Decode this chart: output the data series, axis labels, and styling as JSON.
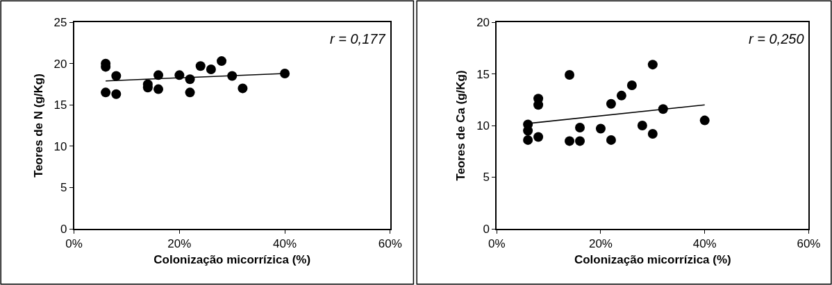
{
  "chart_data": [
    {
      "type": "scatter",
      "xlabel": "Colonização micorrízica (%)",
      "ylabel": "Teores de N (g/Kg)",
      "xlim": [
        0,
        0.6
      ],
      "xticks": [
        {
          "value": 0,
          "label": "0%"
        },
        {
          "value": 0.2,
          "label": "20%"
        },
        {
          "value": 0.4,
          "label": "40%"
        },
        {
          "value": 0.6,
          "label": "60%"
        }
      ],
      "ylim": [
        0,
        25
      ],
      "yticks": [
        0,
        5,
        10,
        15,
        20,
        25
      ],
      "grid": false,
      "annotations": [
        "r = 0,177"
      ],
      "series": [
        {
          "marker": "circle",
          "color": "#000000",
          "x": [
            0.06,
            0.06,
            0.06,
            0.08,
            0.08,
            0.14,
            0.14,
            0.16,
            0.16,
            0.2,
            0.22,
            0.22,
            0.24,
            0.26,
            0.28,
            0.3,
            0.32,
            0.4
          ],
          "values": [
            20.0,
            19.6,
            16.5,
            18.5,
            16.3,
            17.5,
            17.1,
            18.6,
            16.9,
            18.6,
            18.1,
            16.5,
            19.7,
            19.3,
            20.3,
            18.5,
            17.0,
            18.8
          ]
        },
        {
          "type": "line",
          "marker": "none",
          "color": "#000000",
          "x": [
            0.06,
            0.4
          ],
          "values": [
            17.9,
            18.8
          ]
        }
      ]
    },
    {
      "type": "scatter",
      "xlabel": "Colonização micorrízica (%)",
      "ylabel": "Teores de Ca (g/Kg)",
      "xlim": [
        0,
        0.6
      ],
      "xticks": [
        {
          "value": 0,
          "label": "0%"
        },
        {
          "value": 0.2,
          "label": "20%"
        },
        {
          "value": 0.4,
          "label": "40%"
        },
        {
          "value": 0.6,
          "label": "60%"
        }
      ],
      "ylim": [
        0,
        20
      ],
      "yticks": [
        0,
        5,
        10,
        15,
        20
      ],
      "grid": false,
      "annotations": [
        "r = 0,250"
      ],
      "series": [
        {
          "marker": "circle",
          "color": "#000000",
          "x": [
            0.06,
            0.06,
            0.06,
            0.08,
            0.08,
            0.08,
            0.14,
            0.14,
            0.16,
            0.16,
            0.2,
            0.22,
            0.22,
            0.24,
            0.26,
            0.28,
            0.3,
            0.3,
            0.32,
            0.4
          ],
          "values": [
            10.1,
            9.5,
            8.6,
            12.6,
            12.0,
            8.9,
            14.9,
            8.5,
            9.8,
            8.5,
            9.7,
            12.1,
            8.6,
            12.9,
            13.9,
            10.0,
            15.9,
            9.2,
            11.6,
            10.5
          ]
        },
        {
          "type": "line",
          "marker": "none",
          "color": "#000000",
          "x": [
            0.06,
            0.4
          ],
          "values": [
            10.2,
            12.0
          ]
        }
      ]
    }
  ]
}
